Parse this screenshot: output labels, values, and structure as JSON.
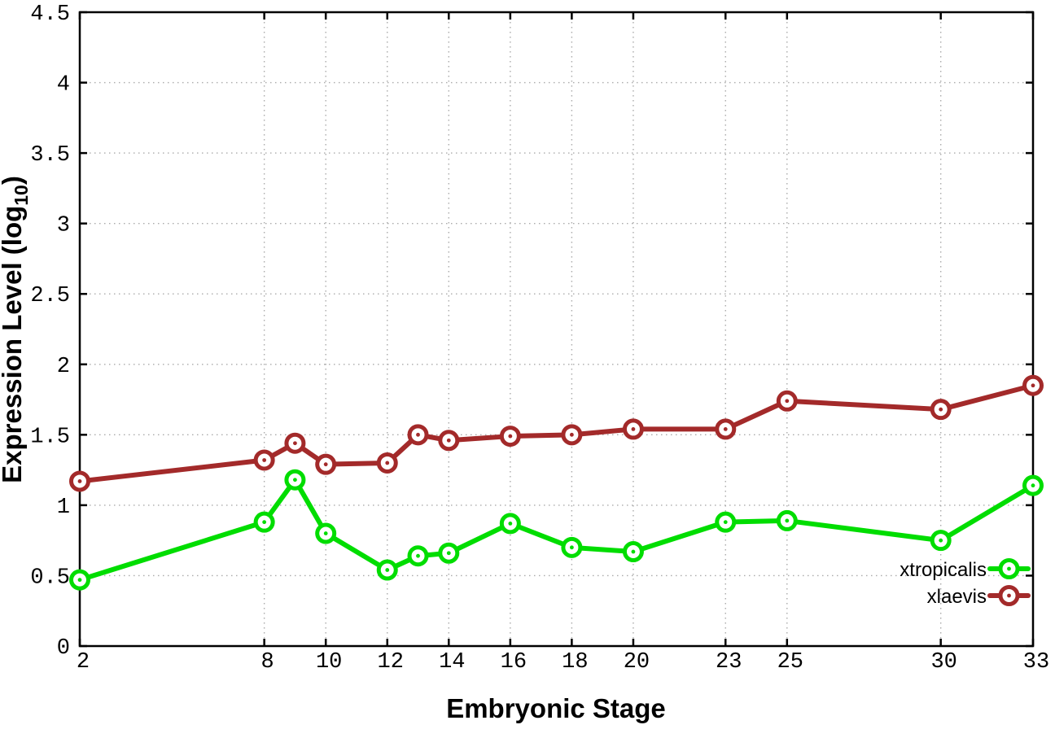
{
  "figure": {
    "background": "#ffffff",
    "xlabel": "Embryonic Stage",
    "ylabel_main": "Expression Level (log",
    "ylabel_sub": "10",
    "ylabel_end": ")"
  },
  "chart_data": {
    "type": "line",
    "title": "",
    "xlabel": "Embryonic Stage",
    "ylabel": "Expression Level (log10)",
    "x": [
      2,
      8,
      9,
      10,
      12,
      13,
      14,
      16,
      18,
      20,
      23,
      25,
      30,
      33
    ],
    "series": [
      {
        "name": "xtropicalis",
        "color": "#00dd00",
        "values": [
          0.47,
          0.88,
          1.18,
          0.8,
          0.54,
          0.64,
          0.66,
          0.87,
          0.7,
          0.67,
          0.88,
          0.89,
          0.75,
          1.14
        ]
      },
      {
        "name": "xlaevis",
        "color": "#a32a2a",
        "values": [
          1.17,
          1.32,
          1.44,
          1.29,
          1.3,
          1.5,
          1.46,
          1.49,
          1.5,
          1.54,
          1.54,
          1.74,
          1.68,
          1.85
        ]
      }
    ],
    "xlim": [
      2,
      33
    ],
    "ylim": [
      0,
      4.5
    ],
    "xticks": [
      2,
      8,
      10,
      12,
      14,
      16,
      18,
      20,
      23,
      25,
      30,
      33
    ],
    "yticks": [
      0,
      0.5,
      1,
      1.5,
      2,
      2.5,
      3,
      3.5,
      4,
      4.5
    ],
    "grid": true,
    "grid_style": "dotted",
    "legend_position": "bottom-right",
    "marker": "open-circle-dot",
    "border_color": "#000000",
    "grid_color": "#aaaaaa"
  }
}
